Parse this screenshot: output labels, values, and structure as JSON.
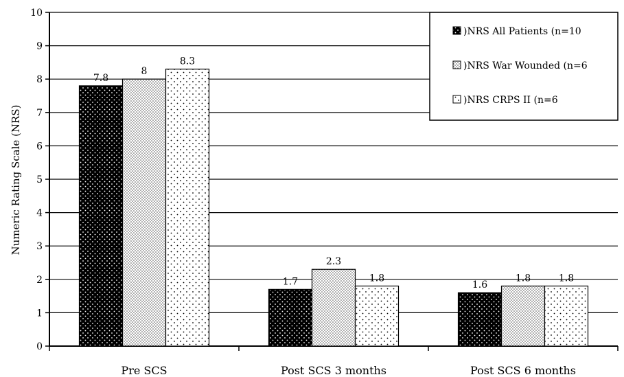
{
  "chart_data": {
    "type": "bar",
    "title": "",
    "xlabel": "",
    "ylabel": "Numeric Rating Scale (NRS)",
    "ylim": [
      0,
      10
    ],
    "yticks": [
      0,
      1,
      2,
      3,
      4,
      5,
      6,
      7,
      8,
      9,
      10
    ],
    "grid": true,
    "legend_position": "top-right",
    "categories": [
      "Pre SCS",
      "Post SCS 3 months",
      "Post SCS 6 months"
    ],
    "series": [
      {
        "name": "NRS All Patients (n=10",
        "values": [
          7.8,
          1.7,
          1.6
        ],
        "labels": [
          "7.8",
          "1.7",
          "1.6"
        ],
        "color": "#000000",
        "dot_color": "#ffffff"
      },
      {
        "name": "NRS War Wounded (n=6",
        "values": [
          8,
          2.3,
          1.8
        ],
        "labels": [
          "8",
          "2.3",
          "1.8"
        ],
        "color": "#b8b8b8",
        "dot_color": "#ffffff"
      },
      {
        "name": "NRS CRPS II (n=6",
        "values": [
          8.3,
          1.8,
          1.8
        ],
        "labels": [
          "8.3",
          "1.8",
          "1.8"
        ],
        "color": "#ffffff",
        "dot_color": "#000000"
      }
    ]
  }
}
